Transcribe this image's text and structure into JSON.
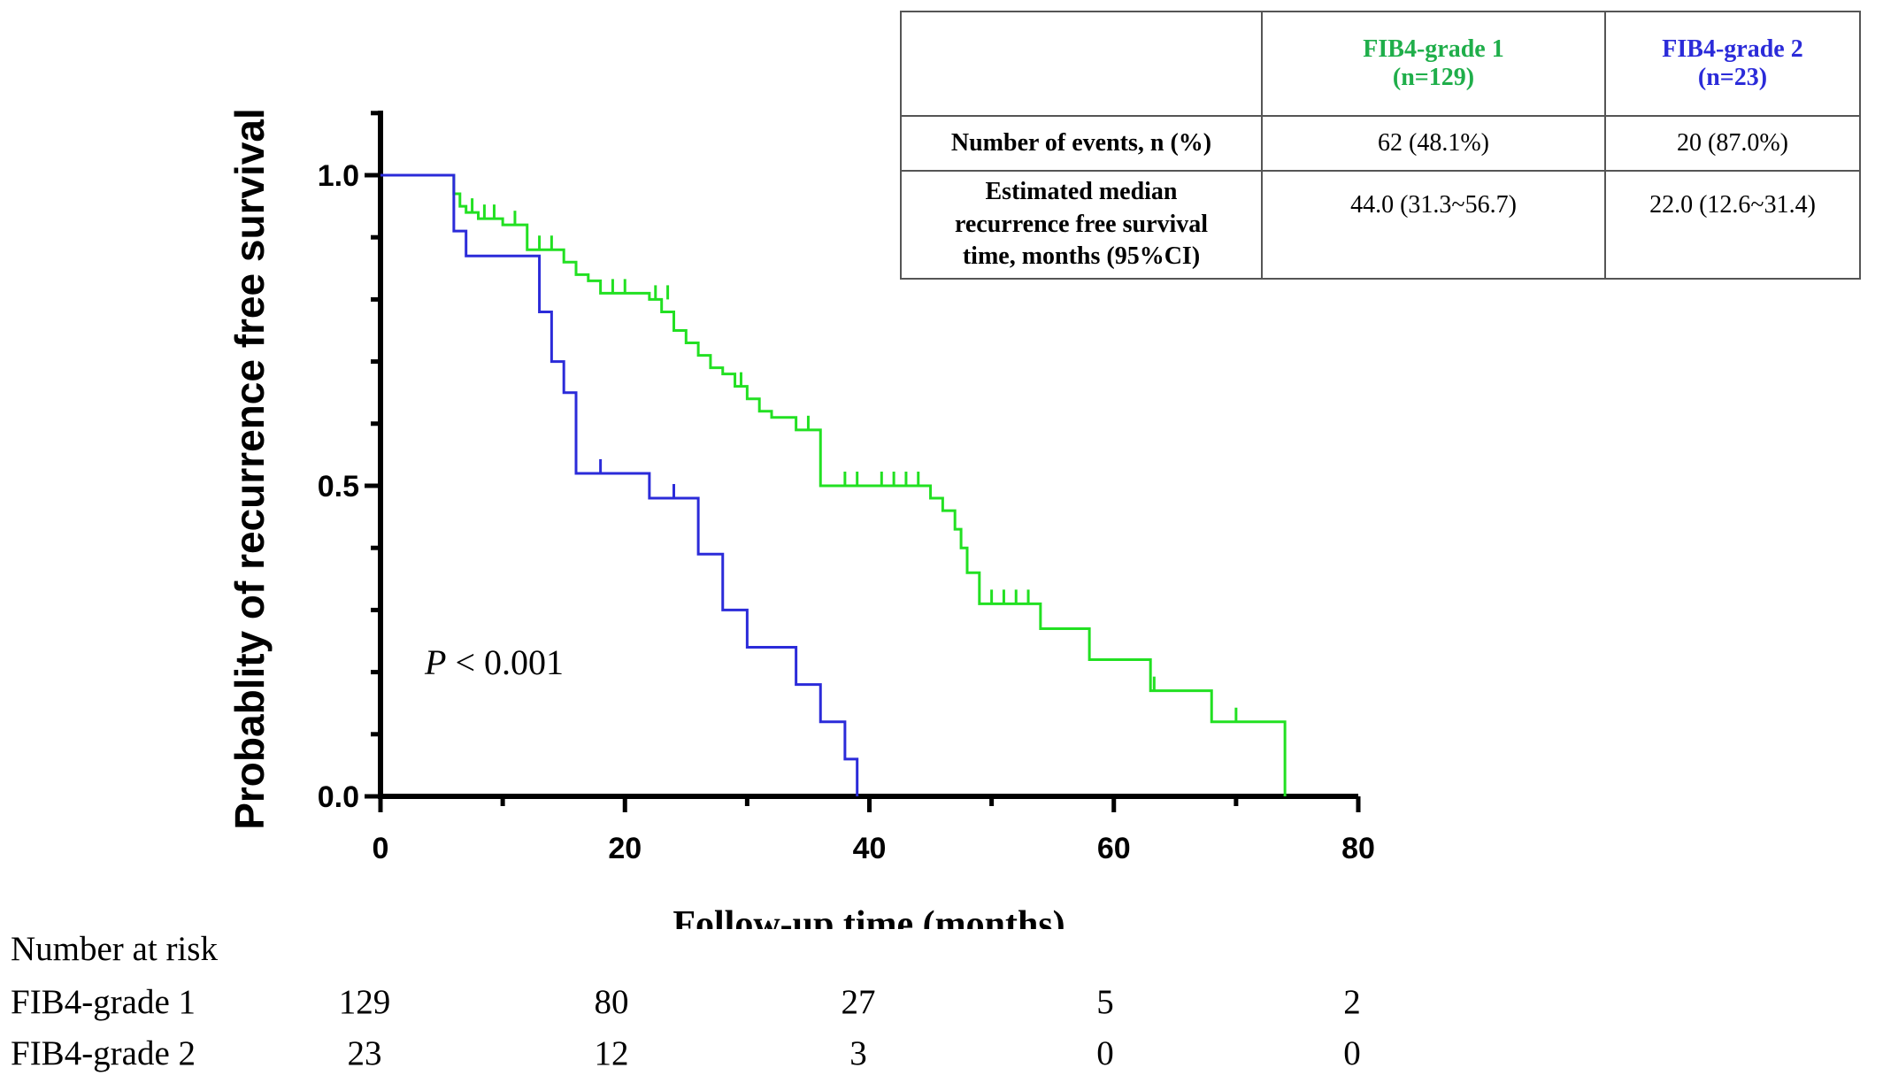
{
  "chart_data": {
    "type": "line",
    "step": true,
    "ylabel": "Probablity of recurrence free survival",
    "xlabel": "Follow-up time (months)",
    "xlim": [
      0,
      80
    ],
    "ylim": [
      0,
      1
    ],
    "xticks": [
      "0",
      "20",
      "40",
      "60",
      "80"
    ],
    "yticks": [
      "0.0",
      "0.5",
      "1.0"
    ],
    "grid": false,
    "annotation_italic": "P",
    "annotation_rest": " < 0.001",
    "series": [
      {
        "name": "FIB4-grade 1",
        "color": "#22e022",
        "x": [
          0,
          6,
          6.5,
          7,
          8,
          10,
          12,
          15,
          16,
          17,
          18,
          22,
          23,
          24,
          25,
          26,
          27,
          28,
          29,
          30,
          31,
          32,
          34,
          36,
          45,
          46,
          47,
          47.5,
          48,
          49,
          54,
          58,
          63,
          68,
          74
        ],
        "y": [
          1.0,
          0.97,
          0.95,
          0.94,
          0.93,
          0.92,
          0.88,
          0.86,
          0.84,
          0.83,
          0.81,
          0.8,
          0.78,
          0.75,
          0.73,
          0.71,
          0.69,
          0.68,
          0.66,
          0.64,
          0.62,
          0.61,
          0.59,
          0.5,
          0.48,
          0.46,
          0.43,
          0.4,
          0.36,
          0.31,
          0.27,
          0.22,
          0.17,
          0.12,
          0.0
        ],
        "censored": [
          [
            7.5,
            0.94
          ],
          [
            8.5,
            0.93
          ],
          [
            9.3,
            0.93
          ],
          [
            11,
            0.92
          ],
          [
            13,
            0.88
          ],
          [
            14,
            0.88
          ],
          [
            19,
            0.81
          ],
          [
            20,
            0.81
          ],
          [
            22.5,
            0.8
          ],
          [
            23.5,
            0.8
          ],
          [
            29.5,
            0.66
          ],
          [
            35,
            0.59
          ],
          [
            38,
            0.5
          ],
          [
            39,
            0.5
          ],
          [
            41,
            0.5
          ],
          [
            42,
            0.5
          ],
          [
            43,
            0.5
          ],
          [
            44,
            0.5
          ],
          [
            50,
            0.31
          ],
          [
            51,
            0.31
          ],
          [
            52,
            0.31
          ],
          [
            53,
            0.31
          ],
          [
            63.3,
            0.17
          ],
          [
            70,
            0.12
          ]
        ]
      },
      {
        "name": "FIB4-grade 2",
        "color": "#2b2bd9",
        "x": [
          0,
          6,
          7,
          13,
          14,
          15,
          16,
          22,
          26,
          28,
          30,
          34,
          36,
          38,
          39
        ],
        "y": [
          1.0,
          0.91,
          0.87,
          0.78,
          0.7,
          0.65,
          0.52,
          0.48,
          0.39,
          0.3,
          0.24,
          0.18,
          0.12,
          0.06,
          0.0
        ],
        "censored": [
          [
            18,
            0.52
          ],
          [
            24,
            0.48
          ]
        ]
      }
    ]
  },
  "table": {
    "header": [
      "",
      "FIB4-grade 1\n(n=129)",
      "FIB4-grade 2\n(n=23)"
    ],
    "header_colors": [
      "#000000",
      "#1fae4a",
      "#2b2bd9"
    ],
    "rows": [
      [
        "Number of events, n (%)",
        "62 (48.1%)",
        "20 (87.0%)"
      ],
      [
        "Estimated median\nrecurrence free survival\ntime, months (95%CI)",
        "44.0 (31.3~56.7)",
        "22.0 (12.6~31.4)"
      ]
    ]
  },
  "risk_table": {
    "title": "Number at risk",
    "times": [
      0,
      20,
      40,
      60,
      80
    ],
    "rows": [
      {
        "label": "FIB4-grade 1",
        "values": [
          "129",
          "80",
          "27",
          "5",
          "2"
        ]
      },
      {
        "label": "FIB4-grade 2",
        "values": [
          "23",
          "12",
          "3",
          "0",
          "0"
        ]
      }
    ]
  }
}
